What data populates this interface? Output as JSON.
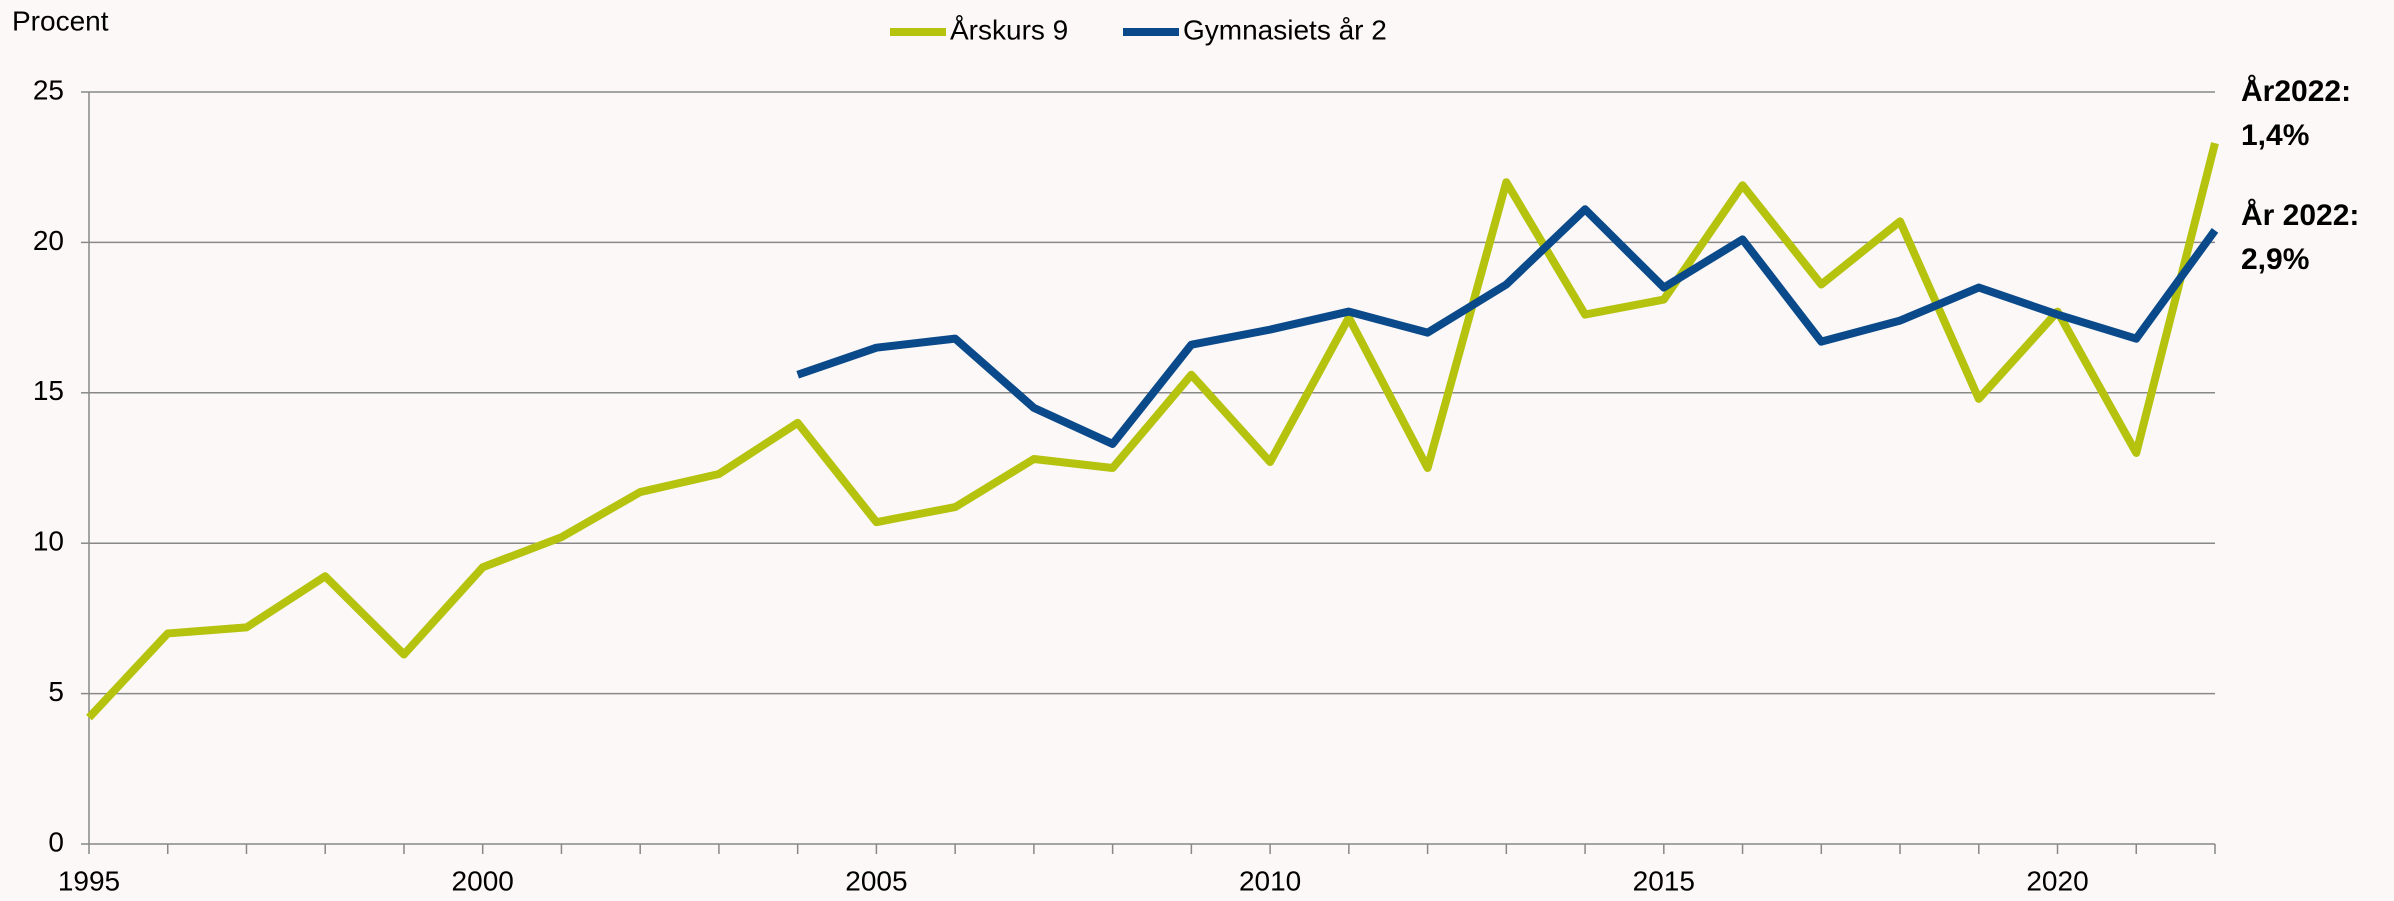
{
  "chart_data": {
    "type": "line",
    "y_label": "Procent",
    "x": [
      1995,
      1996,
      1997,
      1998,
      1999,
      2000,
      2001,
      2002,
      2003,
      2004,
      2005,
      2006,
      2007,
      2008,
      2009,
      2010,
      2011,
      2012,
      2013,
      2014,
      2015,
      2016,
      2017,
      2018,
      2019,
      2020,
      2021,
      2022
    ],
    "series": [
      {
        "name": "Årskurs 9",
        "color": "#b5c30f",
        "values": [
          4.2,
          7.0,
          7.2,
          8.9,
          6.3,
          9.2,
          10.2,
          11.7,
          12.3,
          14.0,
          10.7,
          11.2,
          12.8,
          12.5,
          15.6,
          12.7,
          17.5,
          12.5,
          22.0,
          17.6,
          18.1,
          21.9,
          18.6,
          20.7,
          14.8,
          17.7,
          13.0,
          23.3
        ]
      },
      {
        "name": "Gymnasiets år 2",
        "color": "#0b4a8a",
        "values": [
          null,
          null,
          null,
          null,
          null,
          null,
          null,
          null,
          null,
          15.6,
          16.5,
          16.8,
          14.5,
          13.3,
          16.6,
          17.1,
          17.7,
          17.0,
          18.6,
          21.1,
          18.5,
          20.1,
          16.7,
          17.4,
          18.5,
          17.6,
          16.8,
          20.4
        ]
      }
    ],
    "xlim": [
      1995,
      2022
    ],
    "xticks": [
      1995,
      2000,
      2005,
      2010,
      2015,
      2020
    ],
    "ylim": [
      0,
      25
    ],
    "yticks": [
      0,
      5,
      10,
      15,
      20,
      25
    ],
    "grid": true,
    "legend": "top",
    "annotations": [
      [
        "År2022:",
        "1,4%"
      ],
      [
        "År 2022:",
        "2,9%"
      ]
    ]
  }
}
